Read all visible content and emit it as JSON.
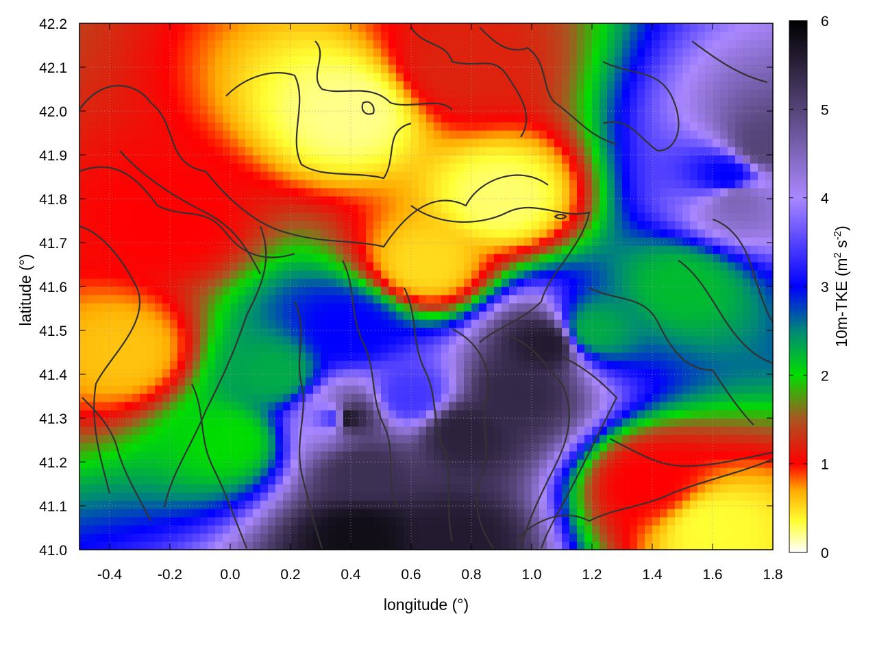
{
  "chart_data": {
    "type": "heatmap",
    "title": "",
    "xlabel": "longitude (°)",
    "ylabel": "latitude (°)",
    "colorbar": {
      "label": "10m-TKE (m",
      "label_sup1": "2",
      "label_mid": " s",
      "label_sup2": "-2",
      "label_end": ")",
      "range": [
        0,
        6
      ],
      "ticks": [
        "0",
        "1",
        "2",
        "3",
        "4",
        "5",
        "6"
      ],
      "colors": [
        {
          "value": 0.0,
          "color": "#ffffff"
        },
        {
          "value": 0.35,
          "color": "#ffff33"
        },
        {
          "value": 0.7,
          "color": "#ffaa00"
        },
        {
          "value": 1.0,
          "color": "#ff0000"
        },
        {
          "value": 1.5,
          "color": "#aa5522"
        },
        {
          "value": 2.0,
          "color": "#00dd00"
        },
        {
          "value": 2.5,
          "color": "#008877"
        },
        {
          "value": 3.0,
          "color": "#0000ff"
        },
        {
          "value": 4.0,
          "color": "#aa88ff"
        },
        {
          "value": 5.0,
          "color": "#554477"
        },
        {
          "value": 6.0,
          "color": "#000000"
        }
      ]
    },
    "xlim": [
      -0.5,
      1.8
    ],
    "ylim": [
      41.0,
      42.2
    ],
    "x_ticks": [
      "-0.4",
      "-0.2",
      "0.0",
      "0.2",
      "0.4",
      "0.6",
      "0.8",
      "1.0",
      "1.2",
      "1.4",
      "1.6",
      "1.8"
    ],
    "y_ticks": [
      "41.0",
      "41.1",
      "41.2",
      "41.3",
      "41.4",
      "41.5",
      "41.6",
      "41.7",
      "41.8",
      "41.9",
      "42.0",
      "42.1",
      "42.2"
    ],
    "grid": true,
    "contours": true,
    "regions": [
      {
        "x": 0.35,
        "y": 41.3,
        "value": 3.3
      },
      {
        "x": 0.4,
        "y": 41.5,
        "value": 3.0
      },
      {
        "x": 0.15,
        "y": 41.4,
        "value": 2.3
      },
      {
        "x": 0.0,
        "y": 41.25,
        "value": 2.0
      },
      {
        "x": 0.6,
        "y": 41.35,
        "value": 3.4
      },
      {
        "x": 1.2,
        "y": 41.5,
        "value": 2.3
      },
      {
        "x": 1.5,
        "y": 41.6,
        "value": 2.2
      },
      {
        "x": 1.65,
        "y": 41.85,
        "value": 3.0
      },
      {
        "x": 0.4,
        "y": 42.0,
        "value": 0.2
      },
      {
        "x": 0.9,
        "y": 41.8,
        "value": 0.25
      },
      {
        "x": -0.2,
        "y": 41.75,
        "value": 1.0
      },
      {
        "x": -0.35,
        "y": 41.45,
        "value": 0.6
      },
      {
        "x": 1.4,
        "y": 41.15,
        "value": 1.0
      },
      {
        "x": 1.6,
        "y": 41.05,
        "value": 0.35
      },
      {
        "x": 0.75,
        "y": 42.1,
        "value": 1.2
      },
      {
        "x": 0.65,
        "y": 41.65,
        "value": 0.5
      },
      {
        "x": 0.38,
        "y": 41.3,
        "value": 5.8
      },
      {
        "x": 0.44,
        "y": 41.18,
        "value": 5.3
      },
      {
        "x": 0.43,
        "y": 41.03,
        "value": 5.8
      },
      {
        "x": 0.77,
        "y": 41.27,
        "value": 5.5
      },
      {
        "x": 0.95,
        "y": 41.36,
        "value": 5.4
      },
      {
        "x": 1.05,
        "y": 41.47,
        "value": 5.6
      },
      {
        "x": 0.74,
        "y": 41.02,
        "value": 5.6
      },
      {
        "x": 1.77,
        "y": 41.92,
        "value": 5.0
      },
      {
        "x": 1.68,
        "y": 41.8,
        "value": 4.5
      }
    ]
  }
}
